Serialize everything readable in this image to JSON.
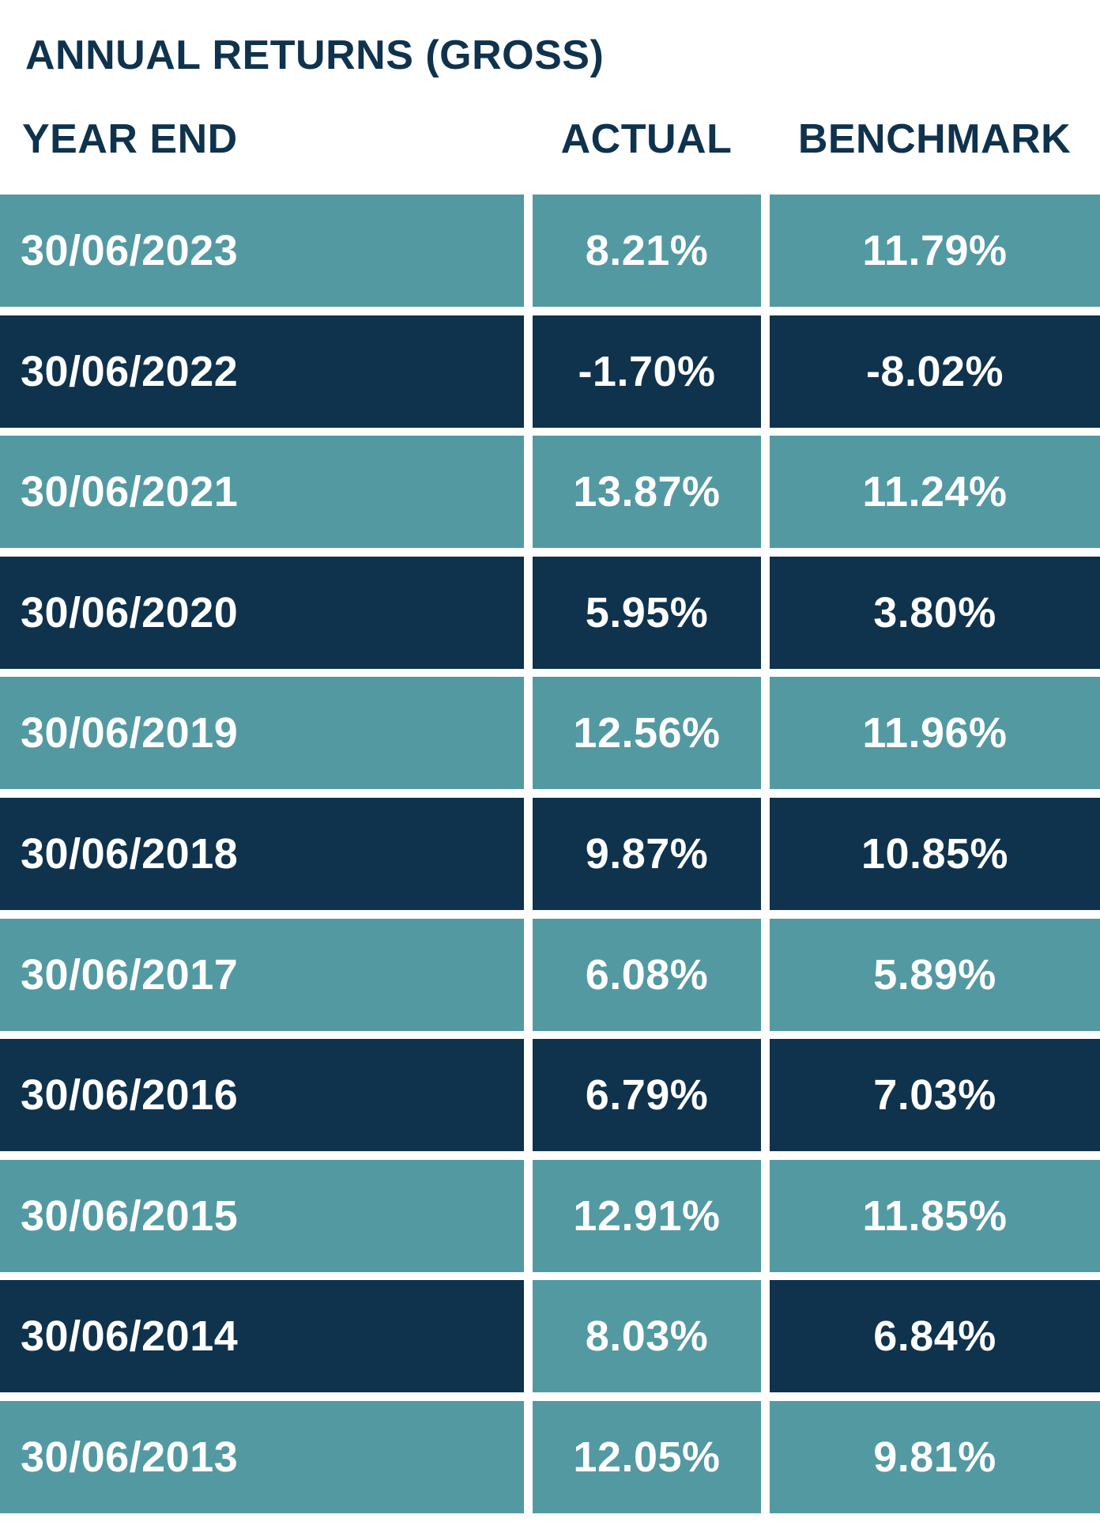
{
  "colors": {
    "teal": "#5399a1",
    "navy": "#0f324d",
    "text_dark": "#0f324d",
    "text_light": "#ffffff"
  },
  "chart_data": {
    "type": "table",
    "title": "ANNUAL RETURNS (GROSS)",
    "columns": [
      "YEAR END",
      "ACTUAL",
      "BENCHMARK"
    ],
    "rows": [
      {
        "year_end": "30/06/2023",
        "actual": "8.21%",
        "benchmark": "11.79%",
        "fills": [
          "teal",
          "teal",
          "teal"
        ]
      },
      {
        "year_end": "30/06/2022",
        "actual": "-1.70%",
        "benchmark": "-8.02%",
        "fills": [
          "navy",
          "navy",
          "navy"
        ]
      },
      {
        "year_end": "30/06/2021",
        "actual": "13.87%",
        "benchmark": "11.24%",
        "fills": [
          "teal",
          "teal",
          "teal"
        ]
      },
      {
        "year_end": "30/06/2020",
        "actual": "5.95%",
        "benchmark": "3.80%",
        "fills": [
          "navy",
          "navy",
          "navy"
        ]
      },
      {
        "year_end": "30/06/2019",
        "actual": "12.56%",
        "benchmark": "11.96%",
        "fills": [
          "teal",
          "teal",
          "teal"
        ]
      },
      {
        "year_end": "30/06/2018",
        "actual": "9.87%",
        "benchmark": "10.85%",
        "fills": [
          "navy",
          "navy",
          "navy"
        ]
      },
      {
        "year_end": "30/06/2017",
        "actual": "6.08%",
        "benchmark": "5.89%",
        "fills": [
          "teal",
          "teal",
          "teal"
        ]
      },
      {
        "year_end": "30/06/2016",
        "actual": "6.79%",
        "benchmark": "7.03%",
        "fills": [
          "navy",
          "navy",
          "navy"
        ]
      },
      {
        "year_end": "30/06/2015",
        "actual": "12.91%",
        "benchmark": "11.85%",
        "fills": [
          "teal",
          "teal",
          "teal"
        ]
      },
      {
        "year_end": "30/06/2014",
        "actual": "8.03%",
        "benchmark": "6.84%",
        "fills": [
          "navy",
          "teal",
          "navy"
        ]
      },
      {
        "year_end": "30/06/2013",
        "actual": "12.05%",
        "benchmark": "9.81%",
        "fills": [
          "teal",
          "teal",
          "teal"
        ]
      }
    ]
  }
}
